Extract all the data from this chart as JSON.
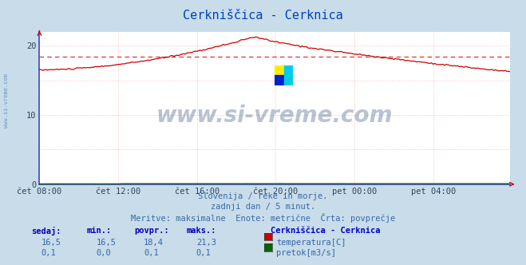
{
  "title": "Cerkniščica - Cerknica",
  "bg_color": "#c8dcea",
  "plot_bg_color": "#ffffff",
  "grid_color": "#ffb0b0",
  "grid_style": "dotted",
  "axis_color": "#4444bb",
  "x_labels": [
    "čet 08:00",
    "čet 12:00",
    "čet 16:00",
    "čet 20:00",
    "pet 00:00",
    "pet 04:00"
  ],
  "x_ticks": [
    0,
    48,
    96,
    144,
    192,
    240
  ],
  "total_points": 288,
  "ylim": [
    0,
    22
  ],
  "yticks": [
    0,
    10,
    20
  ],
  "temp_avg": 18.4,
  "temp_min": 16.5,
  "temp_max": 21.3,
  "temp_current": 16.5,
  "flow_avg": 0.1,
  "flow_min": 0.0,
  "flow_max": 0.1,
  "flow_current": 0.1,
  "temp_line_color": "#cc0000",
  "temp_avg_line_color": "#dd4444",
  "flow_line_color": "#006600",
  "watermark": "www.si-vreme.com",
  "watermark_color": "#1a3a6a",
  "watermark_alpha": 0.3,
  "subtitle1": "Slovenija / reke in morje.",
  "subtitle2": "zadnji dan / 5 minut.",
  "subtitle3": "Meritve: maksimalne  Enote: metrične  Črta: povprečje",
  "subtitle_color": "#3a6aaa",
  "legend_title": "Cerkniščica - Cerknica",
  "legend_color": "#0000cc",
  "table_header_color": "#0000bb",
  "table_value_color": "#3366aa",
  "side_watermark": "www.si-vreme.com",
  "side_watermark_color": "#4477aa"
}
